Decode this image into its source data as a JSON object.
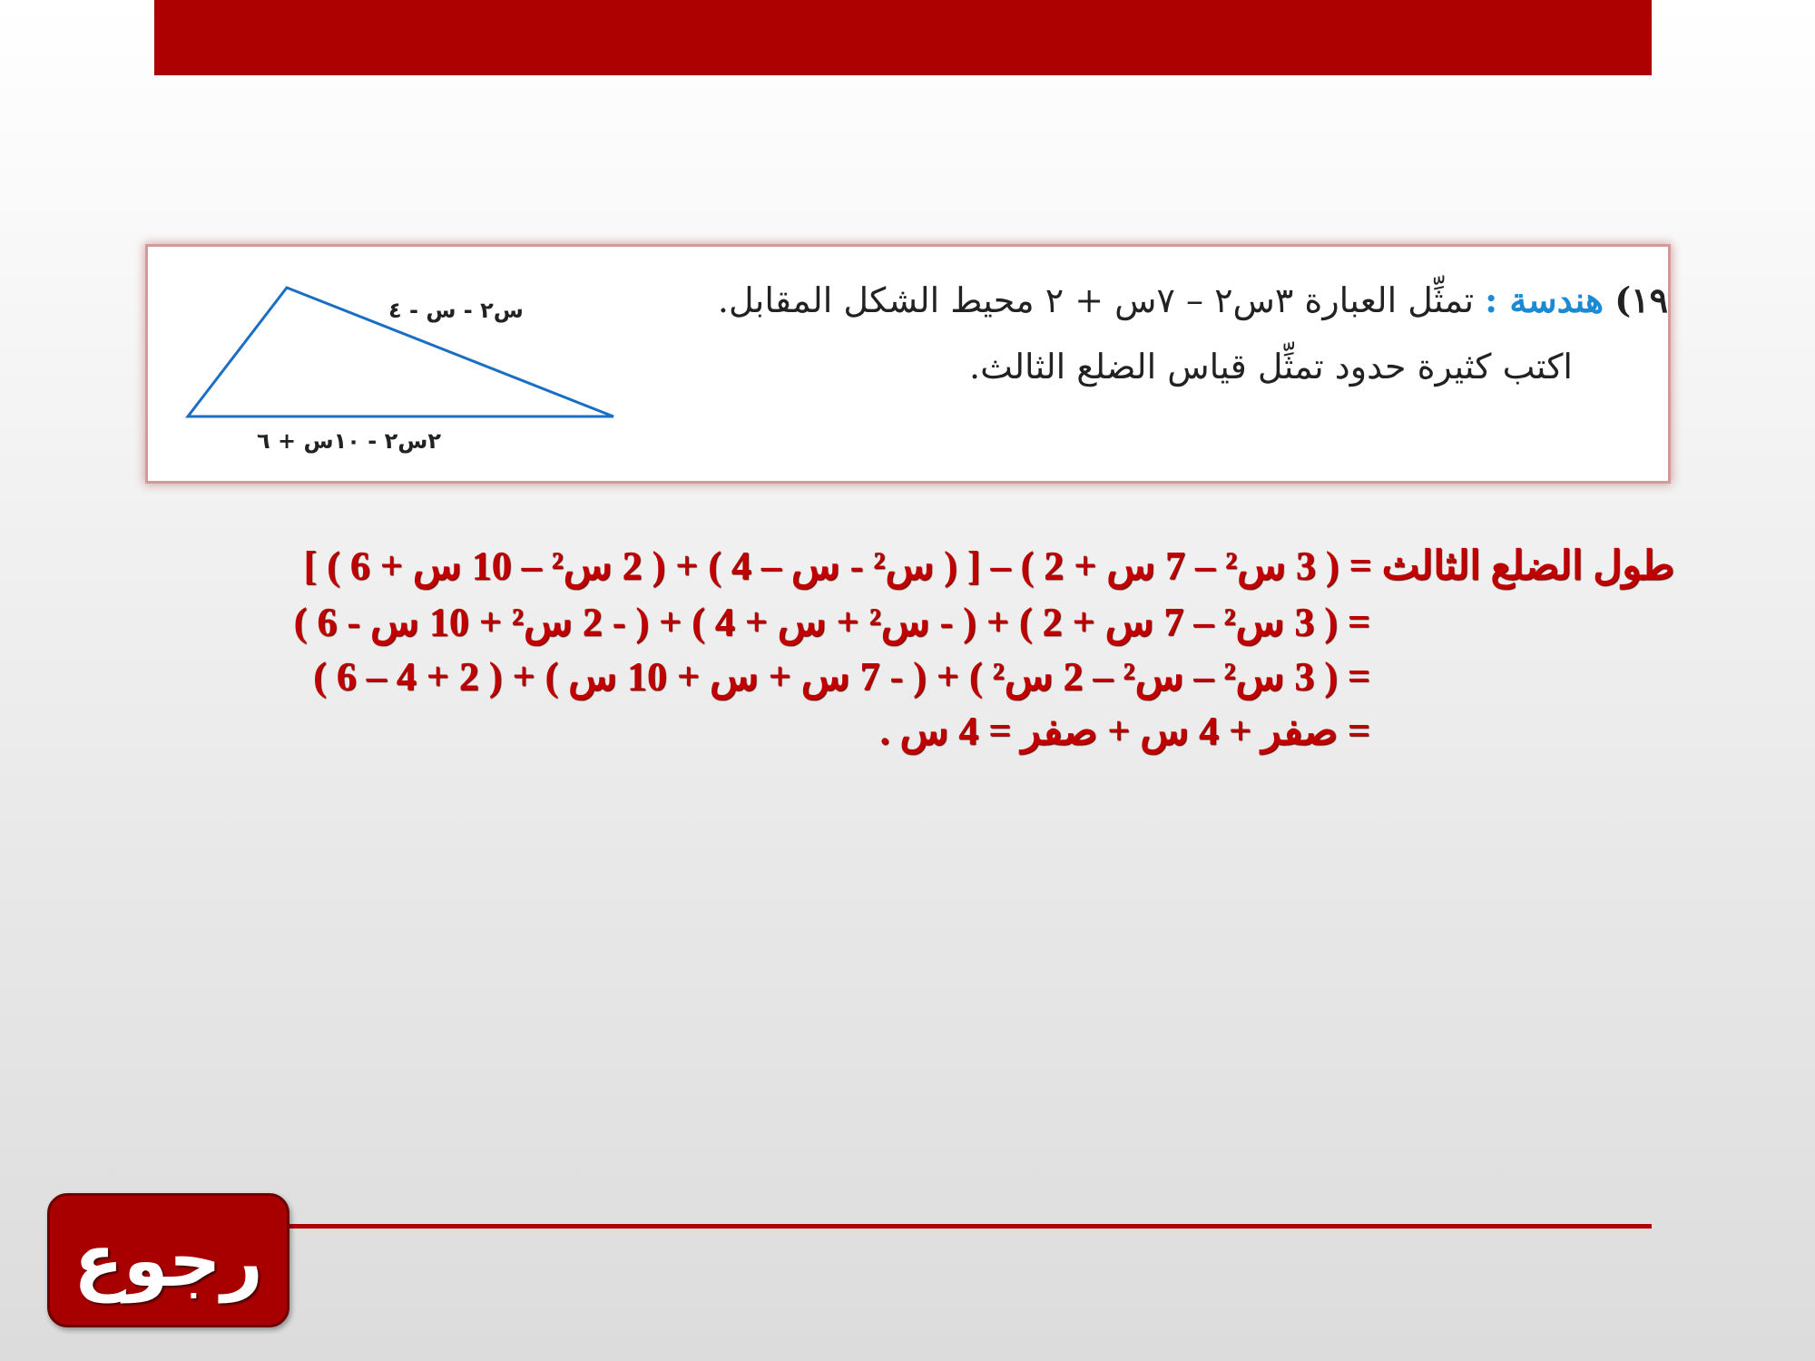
{
  "colors": {
    "accent": "#ad0000",
    "solution_text": "#c00000",
    "topic": "#1a8ad4",
    "triangle": "#1a6fc4"
  },
  "question": {
    "number": "١٩)",
    "topic": "هندسة :",
    "line1": "تمثِّل العبارة ٣س٢ – ٧س + ٢ محيط الشكل المقابل.",
    "line2": "اكتب كثيرة حدود تمثِّل قياس الضلع الثالث.",
    "side_top": "س٢ - س - ٤",
    "side_bottom": "٢س٢ - ١٠س + ٦"
  },
  "solution": [
    "طول الضلع الثالث = ( 3 س² – 7 س + 2 ) – [ ( س² - س – 4 ) + ( 2 س² – 10 س + 6 ) ]",
    "= ( 3 س² – 7 س + 2 ) + ( - س² + س + 4 ) + ( - 2 س² + 10 س - 6 )",
    "= ( 3 س² – س² – 2 س² ) + ( - 7 س + س + 10 س ) + ( 2 + 4 – 6 )",
    "= صفر + 4 س + صفر = 4 س ."
  ],
  "back_button": "رجوع"
}
